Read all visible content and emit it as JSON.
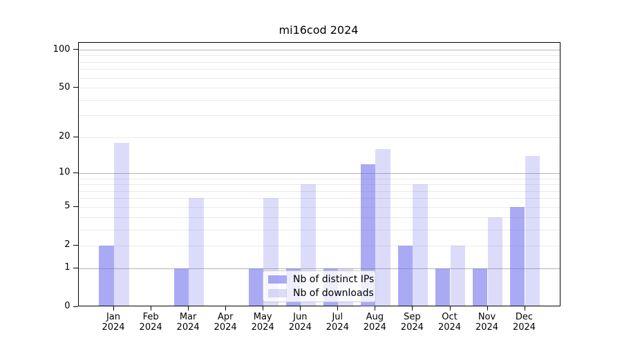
{
  "title": "mi16cod 2024",
  "legend": {
    "items": [
      {
        "label": "Nb of distinct IPs",
        "color_key": "ips"
      },
      {
        "label": "Nb of downloads",
        "color_key": "downloads"
      }
    ],
    "position": "lower center"
  },
  "colors": {
    "ips": "rgba(105,105,235,0.57)",
    "downloads": "rgba(105,105,235,0.23)",
    "grid_major": "#b4b4b4",
    "grid_minor": "#ebebeb",
    "axis": "#000000",
    "background": "#ffffff"
  },
  "chart_data": {
    "type": "bar",
    "title": "mi16cod 2024",
    "xlabel": "",
    "ylabel": "",
    "categories": [
      {
        "line1": "Jan",
        "line2": "2024"
      },
      {
        "line1": "Feb",
        "line2": "2024"
      },
      {
        "line1": "Mar",
        "line2": "2024"
      },
      {
        "line1": "Apr",
        "line2": "2024"
      },
      {
        "line1": "May",
        "line2": "2024"
      },
      {
        "line1": "Jun",
        "line2": "2024"
      },
      {
        "line1": "Jul",
        "line2": "2024"
      },
      {
        "line1": "Aug",
        "line2": "2024"
      },
      {
        "line1": "Sep",
        "line2": "2024"
      },
      {
        "line1": "Oct",
        "line2": "2024"
      },
      {
        "line1": "Nov",
        "line2": "2024"
      },
      {
        "line1": "Dec",
        "line2": "2024"
      }
    ],
    "series": [
      {
        "name": "Nb of distinct IPs",
        "values": [
          2,
          0,
          1,
          0,
          1,
          1,
          1,
          12,
          2,
          1,
          1,
          5
        ]
      },
      {
        "name": "Nb of downloads",
        "values": [
          18,
          0,
          6,
          0,
          6,
          8,
          1,
          16,
          8,
          2,
          4,
          14
        ]
      }
    ],
    "yscale": "log1p",
    "ylim": [
      0,
      114
    ],
    "yticks": [
      0,
      1,
      2,
      5,
      10,
      20,
      50,
      100
    ],
    "major_yticks": [
      1,
      10,
      100
    ],
    "minor_yticks": [
      3,
      4,
      6,
      7,
      8,
      9,
      30,
      40,
      60,
      70,
      80,
      90
    ],
    "grid": "horizontal",
    "legend_position": "lower center"
  }
}
